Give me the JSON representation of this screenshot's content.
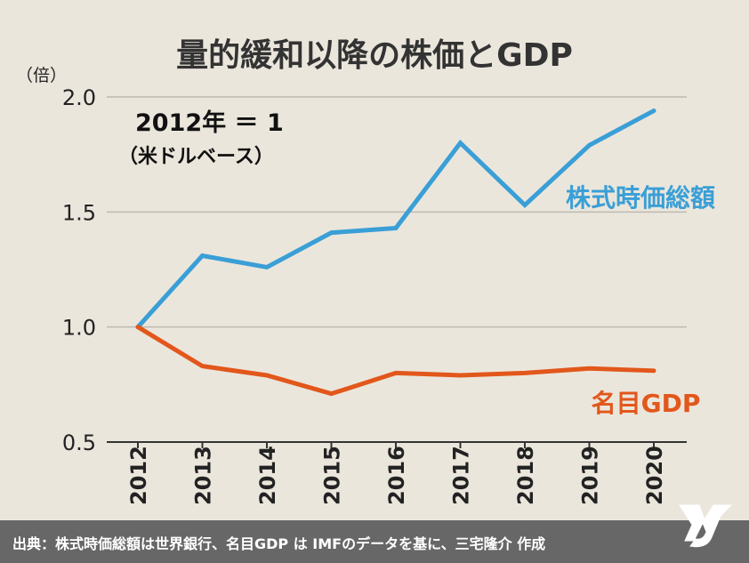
{
  "chart_data": {
    "type": "line",
    "title": "量的緩和以降の株価とGDP",
    "ylabel": "（倍）",
    "annotation": {
      "line1": "2012年 ＝ 1",
      "line2": "（米ドルベース）"
    },
    "categories": [
      "2012",
      "2013",
      "2014",
      "2015",
      "2016",
      "2017",
      "2018",
      "2019",
      "2020"
    ],
    "yticks": [
      "0.5",
      "1.0",
      "1.5",
      "2.0"
    ],
    "ylim": [
      0.5,
      2.0
    ],
    "grid": true,
    "series": [
      {
        "name": "株式時価総額",
        "color": "#3a9fd6",
        "values": [
          1.0,
          1.31,
          1.26,
          1.41,
          1.43,
          1.8,
          1.53,
          1.79,
          1.94
        ]
      },
      {
        "name": "名目GDP",
        "color": "#e2571b",
        "values": [
          1.0,
          0.83,
          0.79,
          0.71,
          0.8,
          0.79,
          0.8,
          0.82,
          0.81
        ]
      }
    ]
  },
  "footer": {
    "source_text": "出典：株式時価総額は世界銀行、名目GDP は IMFのデータを基に、三宅隆介 作成",
    "logo_icon": "mr-logo-icon"
  }
}
